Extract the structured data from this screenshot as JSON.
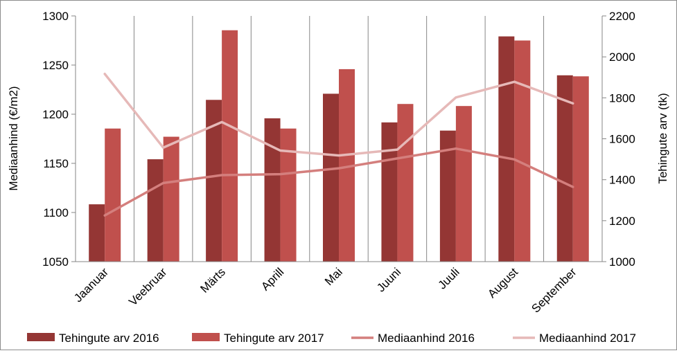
{
  "chart_data": {
    "type": "bar",
    "categories": [
      "Jaanuar",
      "Veebruar",
      "Märts",
      "Aprill",
      "Mai",
      "Juuni",
      "Juuli",
      "August",
      "September"
    ],
    "series": [
      {
        "name": "Tehingute arv 2016",
        "type": "bar",
        "axis": "right",
        "color": "#943634",
        "values": [
          1280,
          1500,
          1790,
          1700,
          1820,
          1680,
          1640,
          2100,
          1910
        ]
      },
      {
        "name": "Tehingute arv 2017",
        "type": "bar",
        "axis": "right",
        "color": "#c0504d",
        "values": [
          1650,
          1610,
          2130,
          1650,
          1940,
          1770,
          1760,
          2080,
          1905
        ]
      },
      {
        "name": "Mediaanhind 2016",
        "type": "line",
        "axis": "left",
        "color": "#d47f7d",
        "values": [
          1097,
          1130,
          1138,
          1139,
          1145,
          1155,
          1165,
          1154,
          1126
        ]
      },
      {
        "name": "Mediaanhind 2017",
        "type": "line",
        "axis": "left",
        "color": "#e6b9b8",
        "values": [
          1241,
          1166,
          1192,
          1163,
          1158,
          1164,
          1217,
          1233,
          1211
        ]
      }
    ],
    "y_left": {
      "label": "Mediaanhind (€/m2)",
      "lim": [
        1050,
        1300
      ],
      "ticks": [
        1050,
        1100,
        1150,
        1200,
        1250,
        1300
      ]
    },
    "y_right": {
      "label": "Tehingute arv (tk)",
      "lim": [
        1000,
        2200
      ],
      "ticks": [
        1000,
        1200,
        1400,
        1600,
        1800,
        2000,
        2200
      ]
    },
    "grid": true,
    "legend_position": "bottom"
  }
}
